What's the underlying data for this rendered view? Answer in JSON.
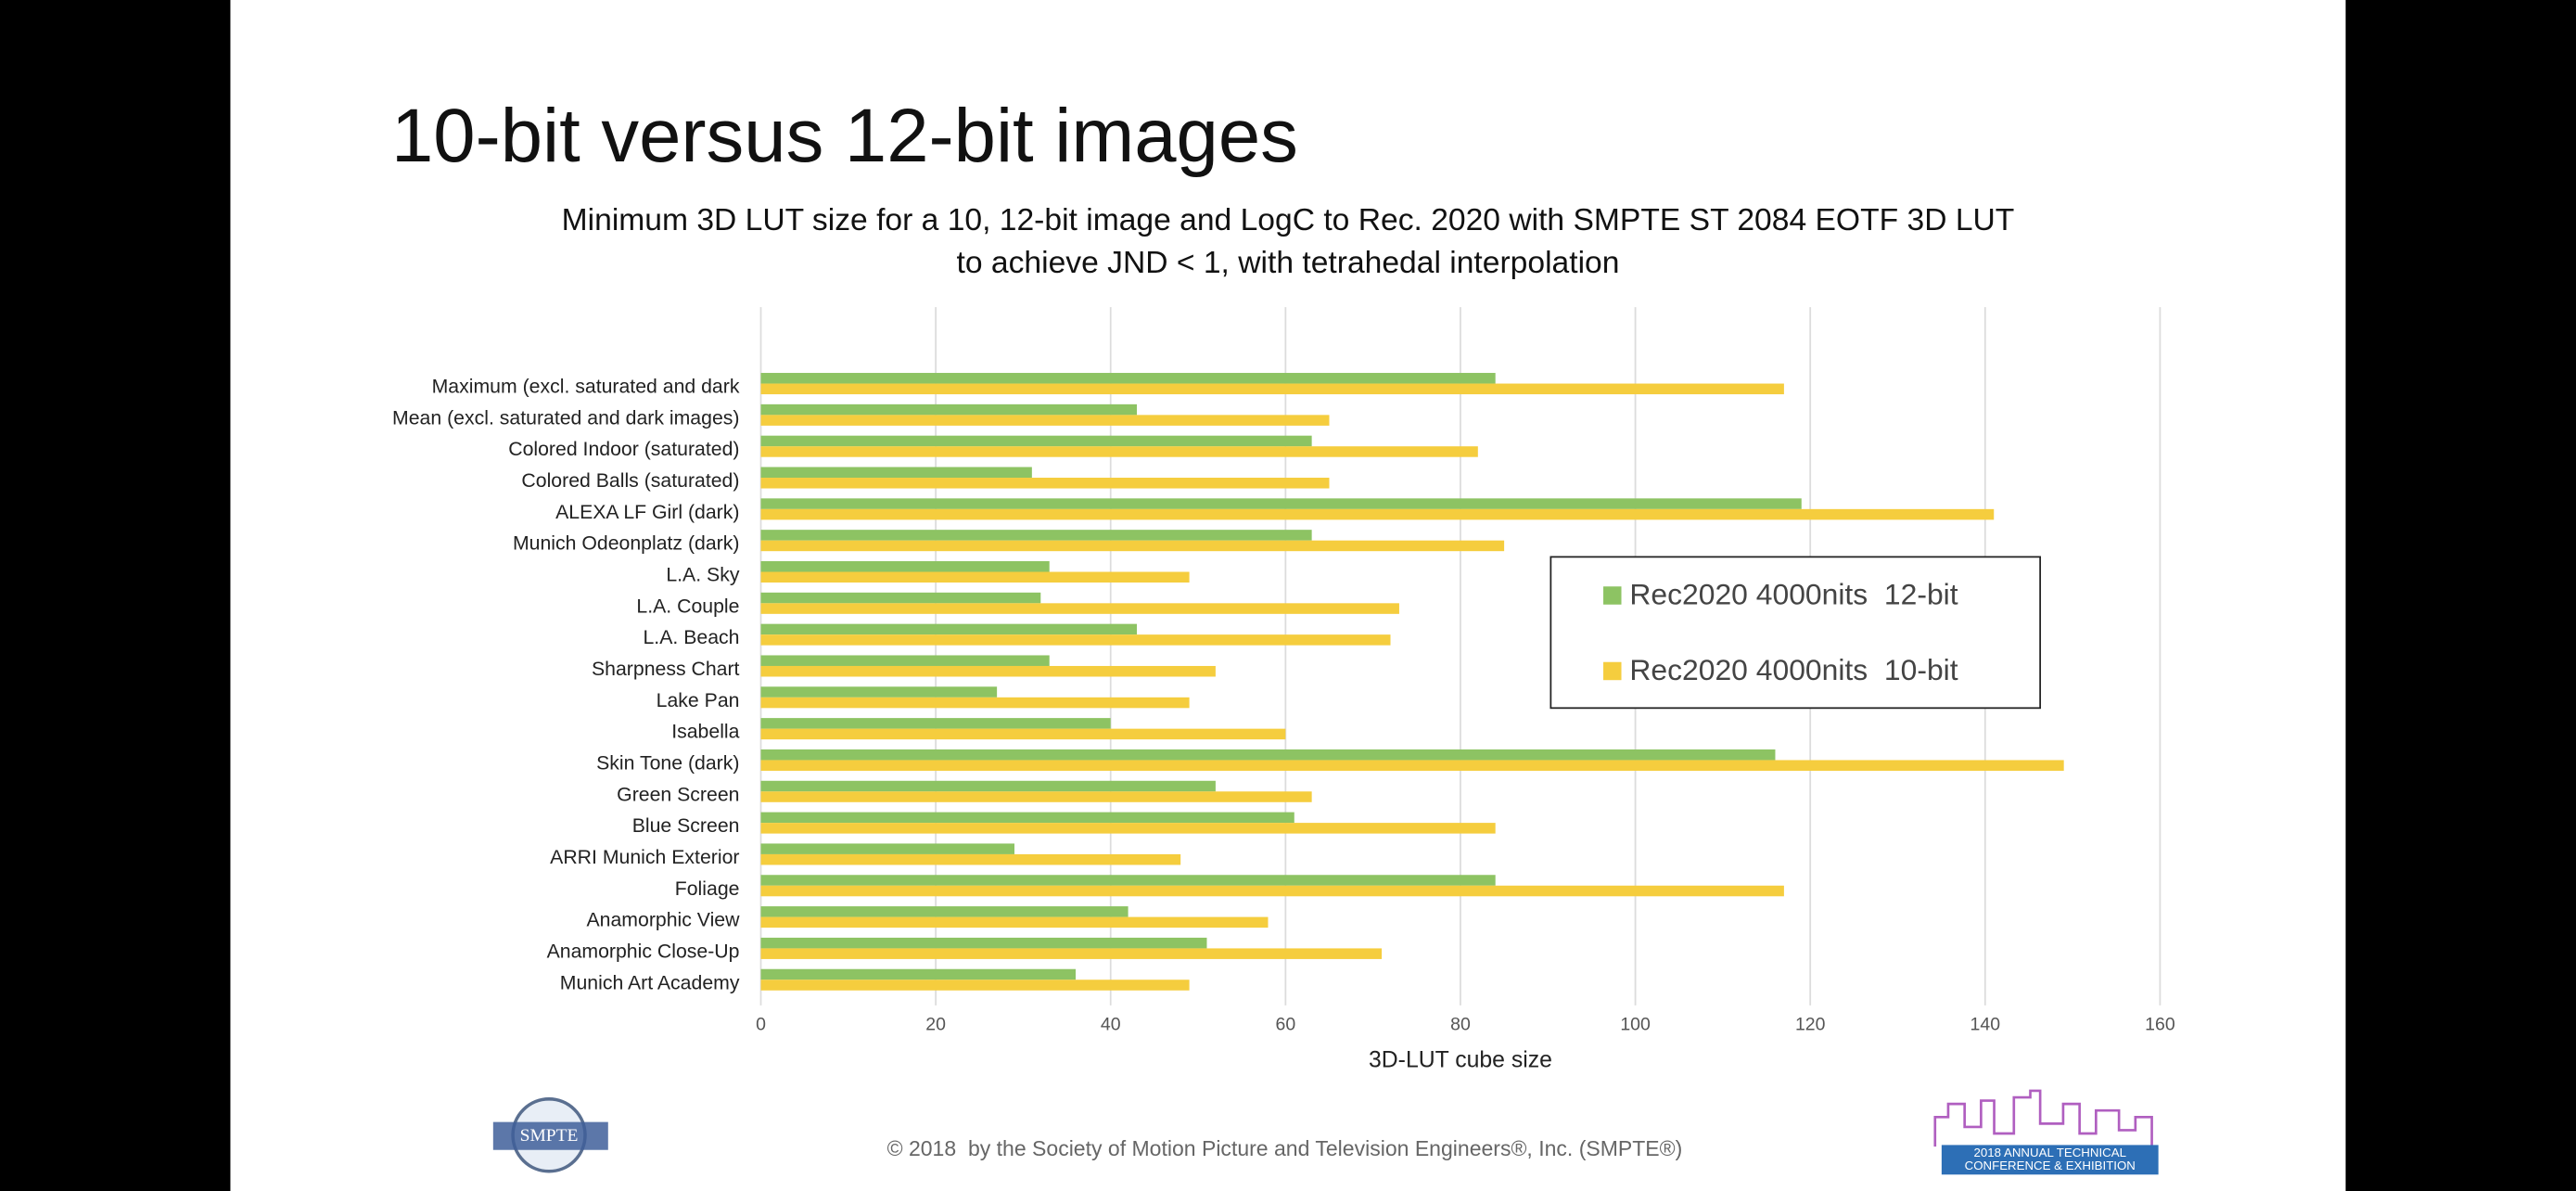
{
  "slide_title": "10-bit versus 12-bit images",
  "footer": "© 2018  by the Society of Motion Picture and Television Engineers®, Inc. (SMPTE®)",
  "logos": {
    "left": "SMPTE",
    "right": [
      "2018 ANNUAL TECHNICAL",
      "CONFERENCE & EXHIBITION"
    ]
  },
  "chart_data": {
    "type": "hbar",
    "title": [
      "Minimum 3D LUT size for a 10, 12-bit image and LogC to Rec. 2020 with SMPTE ST 2084 EOTF 3D LUT",
      "to achieve JND < 1, with tetrahedal interpolation"
    ],
    "x_label": "3D-LUT cube size",
    "categories": [
      "Maximum (excl. saturated and dark",
      "Mean (excl. saturated and dark images)",
      "Colored Indoor (saturated)",
      "Colored Balls (saturated)",
      "ALEXA LF Girl (dark)",
      "Munich Odeonplatz (dark)",
      "L.A. Sky",
      "L.A. Couple",
      "L.A. Beach",
      "Sharpness Chart",
      "Lake Pan",
      "Isabella",
      "Skin Tone (dark)",
      "Green Screen",
      "Blue Screen",
      "ARRI Munich Exterior",
      "Foliage",
      "Anamorphic View",
      "Anamorphic Close-Up",
      "Munich Art Academy"
    ],
    "series": [
      {
        "name": "Rec2020 4000nits  12-bit",
        "color": "#8dc363",
        "values": [
          84,
          43,
          63,
          31,
          119,
          63,
          33,
          32,
          43,
          33,
          27,
          40,
          116,
          52,
          61,
          29,
          84,
          42,
          51,
          36
        ]
      },
      {
        "name": "Rec2020 4000nits  10-bit",
        "color": "#f5cd3e",
        "values": [
          117,
          65,
          82,
          65,
          141,
          85,
          49,
          73,
          72,
          52,
          49,
          60,
          149,
          63,
          84,
          48,
          117,
          58,
          71,
          49
        ]
      }
    ],
    "xlim": [
      0,
      160
    ],
    "xticks": [
      0,
      20,
      40,
      60,
      80,
      100,
      120,
      140,
      160
    ],
    "grid": true,
    "legend_position": "right"
  }
}
